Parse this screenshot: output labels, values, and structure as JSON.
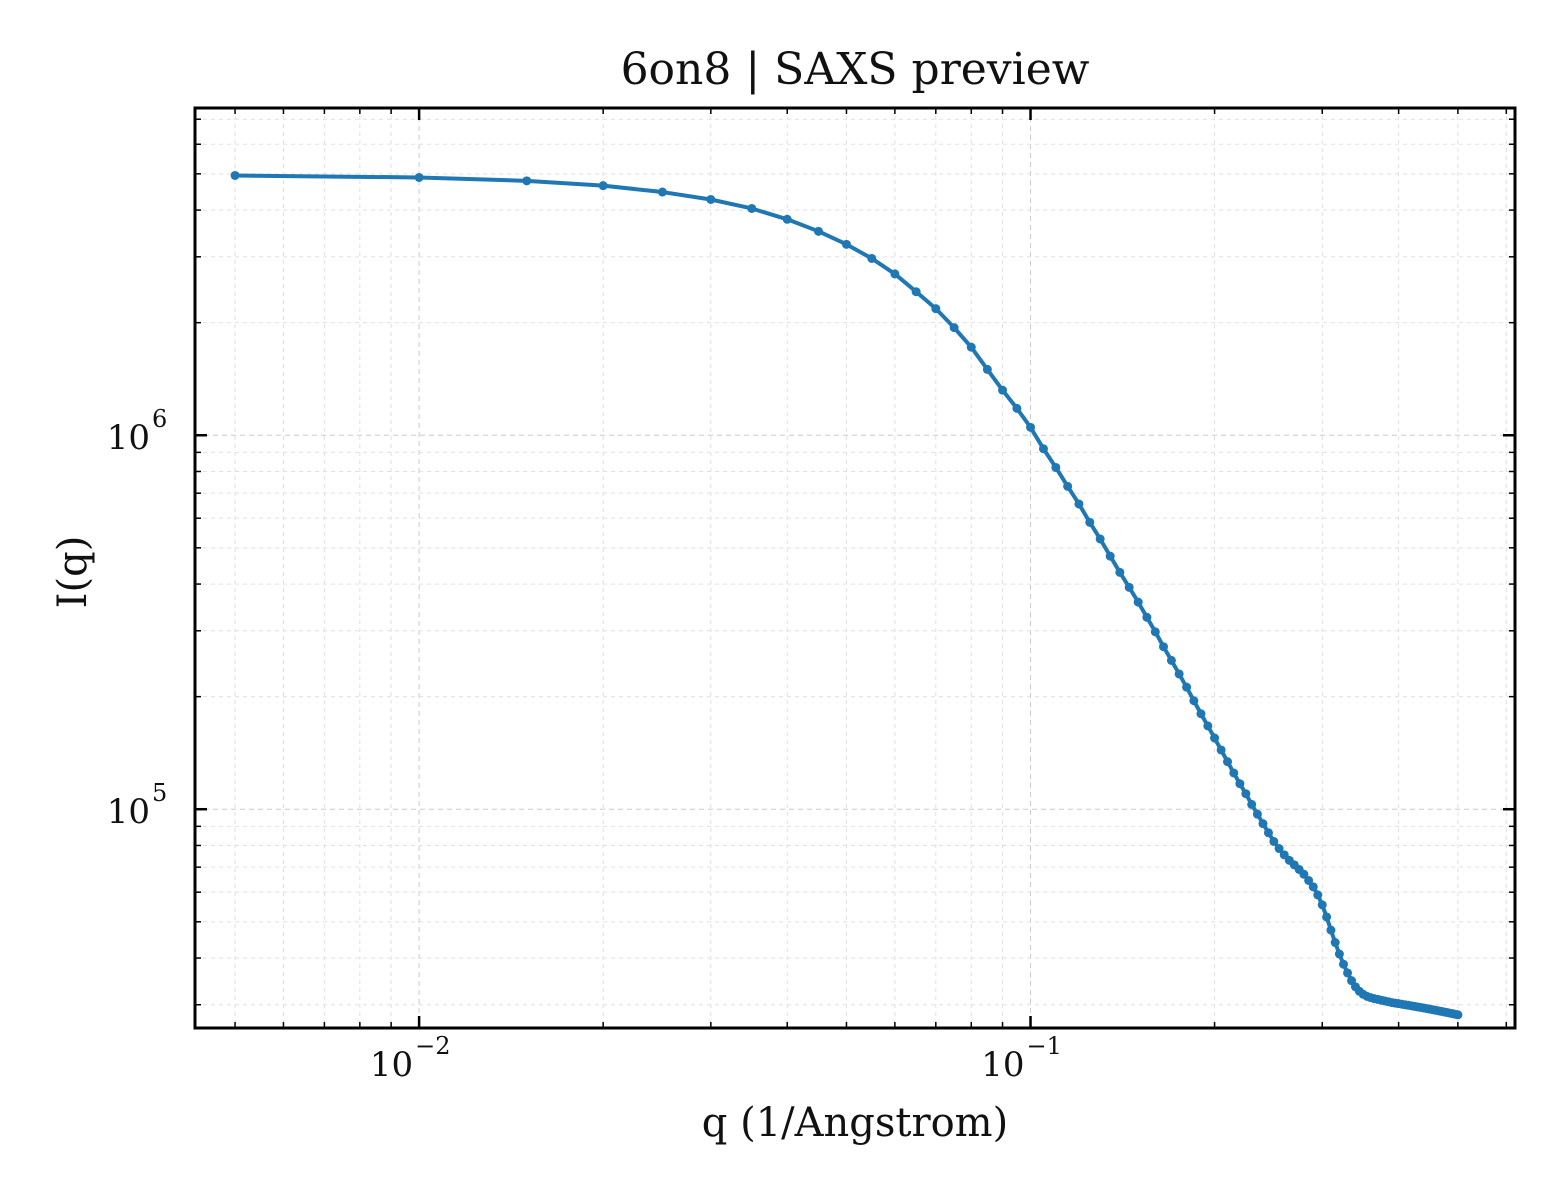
{
  "chart_data": {
    "type": "line",
    "title": "6on8 | SAXS preview",
    "xlabel": "q (1/Angstrom)",
    "ylabel": "I(q)",
    "xscale": "log",
    "yscale": "log",
    "xlim": [
      0.0043,
      0.62
    ],
    "ylim": [
      26000,
      7500000
    ],
    "grid": true,
    "legend": "none",
    "series_color": "#1f77b4",
    "x_ticks": [
      {
        "base": "10",
        "exp": "−2",
        "value": 0.01
      },
      {
        "base": "10",
        "exp": "−1",
        "value": 0.1
      }
    ],
    "y_ticks": [
      {
        "base": "10",
        "exp": "5",
        "value": 100000
      },
      {
        "base": "10",
        "exp": "6",
        "value": 1000000
      }
    ],
    "series": [
      {
        "marker": "circle",
        "x": [
          0.005,
          0.01,
          0.015,
          0.02,
          0.025,
          0.03,
          0.035,
          0.04,
          0.045,
          0.05,
          0.055,
          0.06,
          0.065,
          0.07,
          0.075,
          0.08,
          0.085,
          0.09,
          0.095,
          0.1,
          0.105,
          0.11,
          0.115,
          0.12,
          0.125,
          0.13,
          0.135,
          0.14,
          0.145,
          0.15,
          0.155,
          0.16,
          0.165,
          0.17,
          0.175,
          0.18,
          0.185,
          0.19,
          0.195,
          0.2,
          0.205,
          0.21,
          0.215,
          0.22,
          0.225,
          0.23,
          0.235,
          0.24,
          0.245,
          0.25,
          0.255,
          0.26,
          0.265,
          0.27,
          0.275,
          0.28,
          0.285,
          0.29,
          0.295,
          0.3,
          0.305,
          0.31,
          0.315,
          0.32,
          0.325,
          0.33,
          0.335,
          0.34,
          0.345,
          0.35,
          0.355,
          0.36,
          0.365,
          0.37,
          0.375,
          0.38,
          0.385,
          0.39,
          0.395,
          0.4,
          0.405,
          0.41,
          0.415,
          0.42,
          0.425,
          0.43,
          0.435,
          0.44,
          0.445,
          0.45,
          0.455,
          0.46,
          0.465,
          0.47,
          0.475,
          0.48,
          0.485,
          0.49,
          0.495,
          0.5
        ],
        "y": [
          4950000,
          4890000,
          4790000,
          4650000,
          4470000,
          4270000,
          4040000,
          3780000,
          3510000,
          3240000,
          2970000,
          2700000,
          2420000,
          2180000,
          1940000,
          1720000,
          1500000,
          1320000,
          1180000,
          1050000,
          920000,
          820000,
          730000,
          655000,
          585000,
          528000,
          475000,
          430000,
          392000,
          358000,
          326000,
          298000,
          272000,
          250000,
          230000,
          212000,
          195000,
          180000,
          167000,
          155000,
          144000,
          134000,
          125000,
          117000,
          110000,
          103000,
          97000,
          91500,
          86500,
          82000,
          78500,
          75500,
          73000,
          71000,
          69000,
          67000,
          64500,
          62000,
          59000,
          55500,
          51500,
          47500,
          44000,
          41000,
          38500,
          36500,
          34800,
          33500,
          32600,
          32000,
          31600,
          31350,
          31150,
          31000,
          30850,
          30700,
          30550,
          30400,
          30300,
          30200,
          30100,
          30000,
          29900,
          29800,
          29700,
          29600,
          29500,
          29400,
          29300,
          29200,
          29100,
          29000,
          28900,
          28800,
          28700,
          28600,
          28500,
          28400,
          28300,
          28200
        ]
      }
    ]
  }
}
